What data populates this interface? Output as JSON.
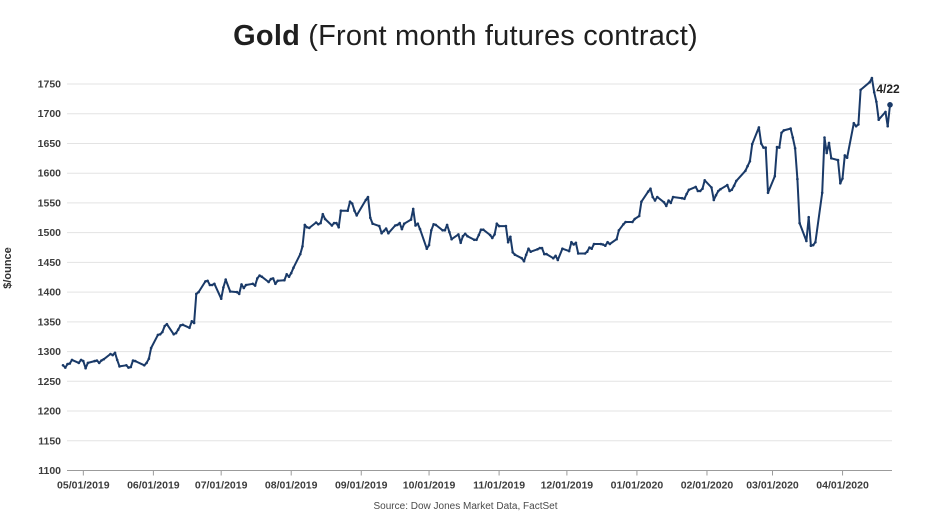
{
  "header": {
    "title_bold": "Gold",
    "title_rest": " (Front month futures contract)"
  },
  "footer": {
    "source": "Source: Dow Jones Market Data, FactSet"
  },
  "colors": {
    "line": "#1a3a68",
    "grid": "#e3e3e3",
    "axis": "#9b9b9b",
    "tick_text": "#3d3d3d",
    "title_text": "#1f1f1f",
    "source_text": "#4a4a4a",
    "background": "#ffffff"
  },
  "chart_data": {
    "type": "line",
    "title": "Gold (Front month futures contract)",
    "xlabel": "",
    "ylabel": "$/ounce",
    "ylim": [
      1100,
      1750
    ],
    "yticks": [
      1100,
      1150,
      1200,
      1250,
      1300,
      1350,
      1400,
      1450,
      1500,
      1550,
      1600,
      1650,
      1700,
      1750
    ],
    "xtick_labels": [
      "05/01/2019",
      "06/01/2019",
      "07/01/2019",
      "08/01/2019",
      "09/01/2019",
      "10/01/2019",
      "11/01/2019",
      "12/01/2019",
      "01/01/2020",
      "02/01/2020",
      "03/01/2020",
      "04/01/2020"
    ],
    "x_range": [
      "2019-04-22",
      "2020-04-22"
    ],
    "grid": "horizontal",
    "legend": "none",
    "annotation": {
      "label": "4/22",
      "date": "2020-04-22",
      "value": 1715
    },
    "series": [
      {
        "name": "Gold front-month futures contract ($/ounce)",
        "points": [
          [
            "2019-04-22",
            1277
          ],
          [
            "2019-04-23",
            1273
          ],
          [
            "2019-04-24",
            1279
          ],
          [
            "2019-04-25",
            1280
          ],
          [
            "2019-04-26",
            1286
          ],
          [
            "2019-04-29",
            1281
          ],
          [
            "2019-04-30",
            1286
          ],
          [
            "2019-05-01",
            1284
          ],
          [
            "2019-05-02",
            1272
          ],
          [
            "2019-05-03",
            1281
          ],
          [
            "2019-05-06",
            1284
          ],
          [
            "2019-05-07",
            1285
          ],
          [
            "2019-05-08",
            1281
          ],
          [
            "2019-05-09",
            1285
          ],
          [
            "2019-05-10",
            1287
          ],
          [
            "2019-05-13",
            1296
          ],
          [
            "2019-05-14",
            1294
          ],
          [
            "2019-05-15",
            1298
          ],
          [
            "2019-05-16",
            1286
          ],
          [
            "2019-05-17",
            1275
          ],
          [
            "2019-05-20",
            1277
          ],
          [
            "2019-05-21",
            1273
          ],
          [
            "2019-05-22",
            1274
          ],
          [
            "2019-05-23",
            1285
          ],
          [
            "2019-05-24",
            1284
          ],
          [
            "2019-05-28",
            1277
          ],
          [
            "2019-05-29",
            1281
          ],
          [
            "2019-05-30",
            1288
          ],
          [
            "2019-05-31",
            1306
          ],
          [
            "2019-06-03",
            1328
          ],
          [
            "2019-06-04",
            1329
          ],
          [
            "2019-06-05",
            1333
          ],
          [
            "2019-06-06",
            1343
          ],
          [
            "2019-06-07",
            1346
          ],
          [
            "2019-06-10",
            1329
          ],
          [
            "2019-06-11",
            1331
          ],
          [
            "2019-06-12",
            1337
          ],
          [
            "2019-06-13",
            1344
          ],
          [
            "2019-06-14",
            1345
          ],
          [
            "2019-06-17",
            1340
          ],
          [
            "2019-06-18",
            1351
          ],
          [
            "2019-06-19",
            1348
          ],
          [
            "2019-06-20",
            1397
          ],
          [
            "2019-06-21",
            1400
          ],
          [
            "2019-06-24",
            1418
          ],
          [
            "2019-06-25",
            1419
          ],
          [
            "2019-06-26",
            1412
          ],
          [
            "2019-06-27",
            1412
          ],
          [
            "2019-06-28",
            1414
          ],
          [
            "2019-07-01",
            1389
          ],
          [
            "2019-07-02",
            1408
          ],
          [
            "2019-07-03",
            1421
          ],
          [
            "2019-07-05",
            1401
          ],
          [
            "2019-07-08",
            1400
          ],
          [
            "2019-07-09",
            1397
          ],
          [
            "2019-07-10",
            1413
          ],
          [
            "2019-07-11",
            1407
          ],
          [
            "2019-07-12",
            1412
          ],
          [
            "2019-07-15",
            1414
          ],
          [
            "2019-07-16",
            1411
          ],
          [
            "2019-07-17",
            1423
          ],
          [
            "2019-07-18",
            1428
          ],
          [
            "2019-07-19",
            1426
          ],
          [
            "2019-07-22",
            1417
          ],
          [
            "2019-07-23",
            1422
          ],
          [
            "2019-07-24",
            1423
          ],
          [
            "2019-07-25",
            1414
          ],
          [
            "2019-07-26",
            1419
          ],
          [
            "2019-07-29",
            1420
          ],
          [
            "2019-07-30",
            1430
          ],
          [
            "2019-07-31",
            1426
          ],
          [
            "2019-08-01",
            1432
          ],
          [
            "2019-08-02",
            1441
          ],
          [
            "2019-08-05",
            1464
          ],
          [
            "2019-08-06",
            1477
          ],
          [
            "2019-08-07",
            1513
          ],
          [
            "2019-08-08",
            1509
          ],
          [
            "2019-08-09",
            1508
          ],
          [
            "2019-08-12",
            1517
          ],
          [
            "2019-08-13",
            1514
          ],
          [
            "2019-08-14",
            1516
          ],
          [
            "2019-08-15",
            1531
          ],
          [
            "2019-08-16",
            1523
          ],
          [
            "2019-08-19",
            1512
          ],
          [
            "2019-08-20",
            1516
          ],
          [
            "2019-08-21",
            1516
          ],
          [
            "2019-08-22",
            1509
          ],
          [
            "2019-08-23",
            1537
          ],
          [
            "2019-08-26",
            1537
          ],
          [
            "2019-08-27",
            1552
          ],
          [
            "2019-08-28",
            1549
          ],
          [
            "2019-08-29",
            1537
          ],
          [
            "2019-08-30",
            1529
          ],
          [
            "2019-09-03",
            1555
          ],
          [
            "2019-09-04",
            1560
          ],
          [
            "2019-09-05",
            1525
          ],
          [
            "2019-09-06",
            1515
          ],
          [
            "2019-09-09",
            1511
          ],
          [
            "2019-09-10",
            1499
          ],
          [
            "2019-09-11",
            1503
          ],
          [
            "2019-09-12",
            1507
          ],
          [
            "2019-09-13",
            1499
          ],
          [
            "2019-09-16",
            1512
          ],
          [
            "2019-09-17",
            1513
          ],
          [
            "2019-09-18",
            1516
          ],
          [
            "2019-09-19",
            1506
          ],
          [
            "2019-09-20",
            1515
          ],
          [
            "2019-09-23",
            1522
          ],
          [
            "2019-09-24",
            1540
          ],
          [
            "2019-09-25",
            1512
          ],
          [
            "2019-09-26",
            1515
          ],
          [
            "2019-09-27",
            1506
          ],
          [
            "2019-09-30",
            1473
          ],
          [
            "2019-10-01",
            1479
          ],
          [
            "2019-10-02",
            1504
          ],
          [
            "2019-10-03",
            1514
          ],
          [
            "2019-10-04",
            1513
          ],
          [
            "2019-10-07",
            1504
          ],
          [
            "2019-10-08",
            1504
          ],
          [
            "2019-10-09",
            1513
          ],
          [
            "2019-10-10",
            1501
          ],
          [
            "2019-10-11",
            1489
          ],
          [
            "2019-10-14",
            1497
          ],
          [
            "2019-10-15",
            1483
          ],
          [
            "2019-10-16",
            1494
          ],
          [
            "2019-10-17",
            1498
          ],
          [
            "2019-10-18",
            1494
          ],
          [
            "2019-10-21",
            1488
          ],
          [
            "2019-10-22",
            1488
          ],
          [
            "2019-10-23",
            1496
          ],
          [
            "2019-10-24",
            1505
          ],
          [
            "2019-10-25",
            1505
          ],
          [
            "2019-10-28",
            1496
          ],
          [
            "2019-10-29",
            1491
          ],
          [
            "2019-10-30",
            1497
          ],
          [
            "2019-10-31",
            1515
          ],
          [
            "2019-11-01",
            1511
          ],
          [
            "2019-11-04",
            1511
          ],
          [
            "2019-11-05",
            1484
          ],
          [
            "2019-11-06",
            1493
          ],
          [
            "2019-11-07",
            1467
          ],
          [
            "2019-11-08",
            1463
          ],
          [
            "2019-11-11",
            1457
          ],
          [
            "2019-11-12",
            1452
          ],
          [
            "2019-11-13",
            1463
          ],
          [
            "2019-11-14",
            1473
          ],
          [
            "2019-11-15",
            1468
          ],
          [
            "2019-11-18",
            1472
          ],
          [
            "2019-11-19",
            1474
          ],
          [
            "2019-11-20",
            1474
          ],
          [
            "2019-11-21",
            1464
          ],
          [
            "2019-11-22",
            1464
          ],
          [
            "2019-11-25",
            1457
          ],
          [
            "2019-11-26",
            1461
          ],
          [
            "2019-11-27",
            1454
          ],
          [
            "2019-11-29",
            1473
          ],
          [
            "2019-12-02",
            1469
          ],
          [
            "2019-12-03",
            1484
          ],
          [
            "2019-12-04",
            1480
          ],
          [
            "2019-12-05",
            1483
          ],
          [
            "2019-12-06",
            1465
          ],
          [
            "2019-12-09",
            1465
          ],
          [
            "2019-12-10",
            1468
          ],
          [
            "2019-12-11",
            1475
          ],
          [
            "2019-12-12",
            1473
          ],
          [
            "2019-12-13",
            1481
          ],
          [
            "2019-12-16",
            1481
          ],
          [
            "2019-12-17",
            1480
          ],
          [
            "2019-12-18",
            1478
          ],
          [
            "2019-12-19",
            1484
          ],
          [
            "2019-12-20",
            1481
          ],
          [
            "2019-12-23",
            1489
          ],
          [
            "2019-12-24",
            1504
          ],
          [
            "2019-12-26",
            1514
          ],
          [
            "2019-12-27",
            1518
          ],
          [
            "2019-12-30",
            1518
          ],
          [
            "2019-12-31",
            1523
          ],
          [
            "2020-01-02",
            1528
          ],
          [
            "2020-01-03",
            1552
          ],
          [
            "2020-01-06",
            1569
          ],
          [
            "2020-01-07",
            1574
          ],
          [
            "2020-01-08",
            1560
          ],
          [
            "2020-01-09",
            1554
          ],
          [
            "2020-01-10",
            1560
          ],
          [
            "2020-01-13",
            1551
          ],
          [
            "2020-01-14",
            1545
          ],
          [
            "2020-01-15",
            1554
          ],
          [
            "2020-01-16",
            1550
          ],
          [
            "2020-01-17",
            1560
          ],
          [
            "2020-01-21",
            1558
          ],
          [
            "2020-01-22",
            1557
          ],
          [
            "2020-01-23",
            1565
          ],
          [
            "2020-01-24",
            1572
          ],
          [
            "2020-01-27",
            1577
          ],
          [
            "2020-01-28",
            1570
          ],
          [
            "2020-01-29",
            1570
          ],
          [
            "2020-01-30",
            1574
          ],
          [
            "2020-01-31",
            1588
          ],
          [
            "2020-02-03",
            1576
          ],
          [
            "2020-02-04",
            1555
          ],
          [
            "2020-02-05",
            1563
          ],
          [
            "2020-02-06",
            1570
          ],
          [
            "2020-02-07",
            1573
          ],
          [
            "2020-02-10",
            1580
          ],
          [
            "2020-02-11",
            1570
          ],
          [
            "2020-02-12",
            1572
          ],
          [
            "2020-02-13",
            1579
          ],
          [
            "2020-02-14",
            1587
          ],
          [
            "2020-02-18",
            1604
          ],
          [
            "2020-02-19",
            1612
          ],
          [
            "2020-02-20",
            1620
          ],
          [
            "2020-02-21",
            1649
          ],
          [
            "2020-02-24",
            1677
          ],
          [
            "2020-02-25",
            1650
          ],
          [
            "2020-02-26",
            1643
          ],
          [
            "2020-02-27",
            1643
          ],
          [
            "2020-02-28",
            1567
          ],
          [
            "2020-03-02",
            1595
          ],
          [
            "2020-03-03",
            1644
          ],
          [
            "2020-03-04",
            1643
          ],
          [
            "2020-03-05",
            1668
          ],
          [
            "2020-03-06",
            1672
          ],
          [
            "2020-03-09",
            1675
          ],
          [
            "2020-03-10",
            1660
          ],
          [
            "2020-03-11",
            1642
          ],
          [
            "2020-03-12",
            1590
          ],
          [
            "2020-03-13",
            1516
          ],
          [
            "2020-03-16",
            1486
          ],
          [
            "2020-03-17",
            1526
          ],
          [
            "2020-03-18",
            1478
          ],
          [
            "2020-03-19",
            1479
          ],
          [
            "2020-03-20",
            1484
          ],
          [
            "2020-03-23",
            1567
          ],
          [
            "2020-03-24",
            1660
          ],
          [
            "2020-03-25",
            1634
          ],
          [
            "2020-03-26",
            1651
          ],
          [
            "2020-03-27",
            1625
          ],
          [
            "2020-03-30",
            1622
          ],
          [
            "2020-03-31",
            1583
          ],
          [
            "2020-04-01",
            1591
          ],
          [
            "2020-04-02",
            1630
          ],
          [
            "2020-04-03",
            1626
          ],
          [
            "2020-04-06",
            1684
          ],
          [
            "2020-04-07",
            1679
          ],
          [
            "2020-04-08",
            1682
          ],
          [
            "2020-04-09",
            1740
          ],
          [
            "2020-04-13",
            1753
          ],
          [
            "2020-04-14",
            1760
          ],
          [
            "2020-04-15",
            1736
          ],
          [
            "2020-04-16",
            1720
          ],
          [
            "2020-04-17",
            1690
          ],
          [
            "2020-04-20",
            1703
          ],
          [
            "2020-04-21",
            1679
          ],
          [
            "2020-04-22",
            1715
          ]
        ]
      }
    ]
  }
}
